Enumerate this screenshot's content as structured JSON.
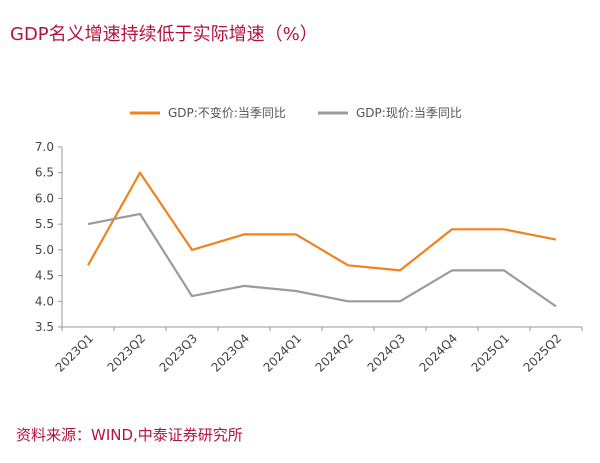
{
  "title": "GDP名义增速持续低于实际增速（%）",
  "source": "资料来源：WIND,中泰证券研究所",
  "chart_data": {
    "type": "line",
    "categories": [
      "2023Q1",
      "2023Q2",
      "2023Q3",
      "2023Q4",
      "2024Q1",
      "2024Q2",
      "2024Q3",
      "2024Q4",
      "2025Q1",
      "2025Q2"
    ],
    "series": [
      {
        "name": "GDP:不变价:当季同比",
        "color": "#f0821e",
        "values": [
          4.7,
          6.5,
          5.0,
          5.3,
          5.3,
          4.7,
          4.6,
          5.4,
          5.4,
          5.2
        ]
      },
      {
        "name": "GDP:现价:当季同比",
        "color": "#9b9b9b",
        "values": [
          5.5,
          5.7,
          4.1,
          4.3,
          4.2,
          4.0,
          4.0,
          4.6,
          4.6,
          3.9
        ]
      }
    ],
    "ylim": [
      3.5,
      7.0
    ],
    "yticks": [
      "3.5",
      "4.0",
      "4.5",
      "5.0",
      "5.5",
      "6.0",
      "6.5",
      "7.0"
    ],
    "legend": "top",
    "grid": false
  }
}
